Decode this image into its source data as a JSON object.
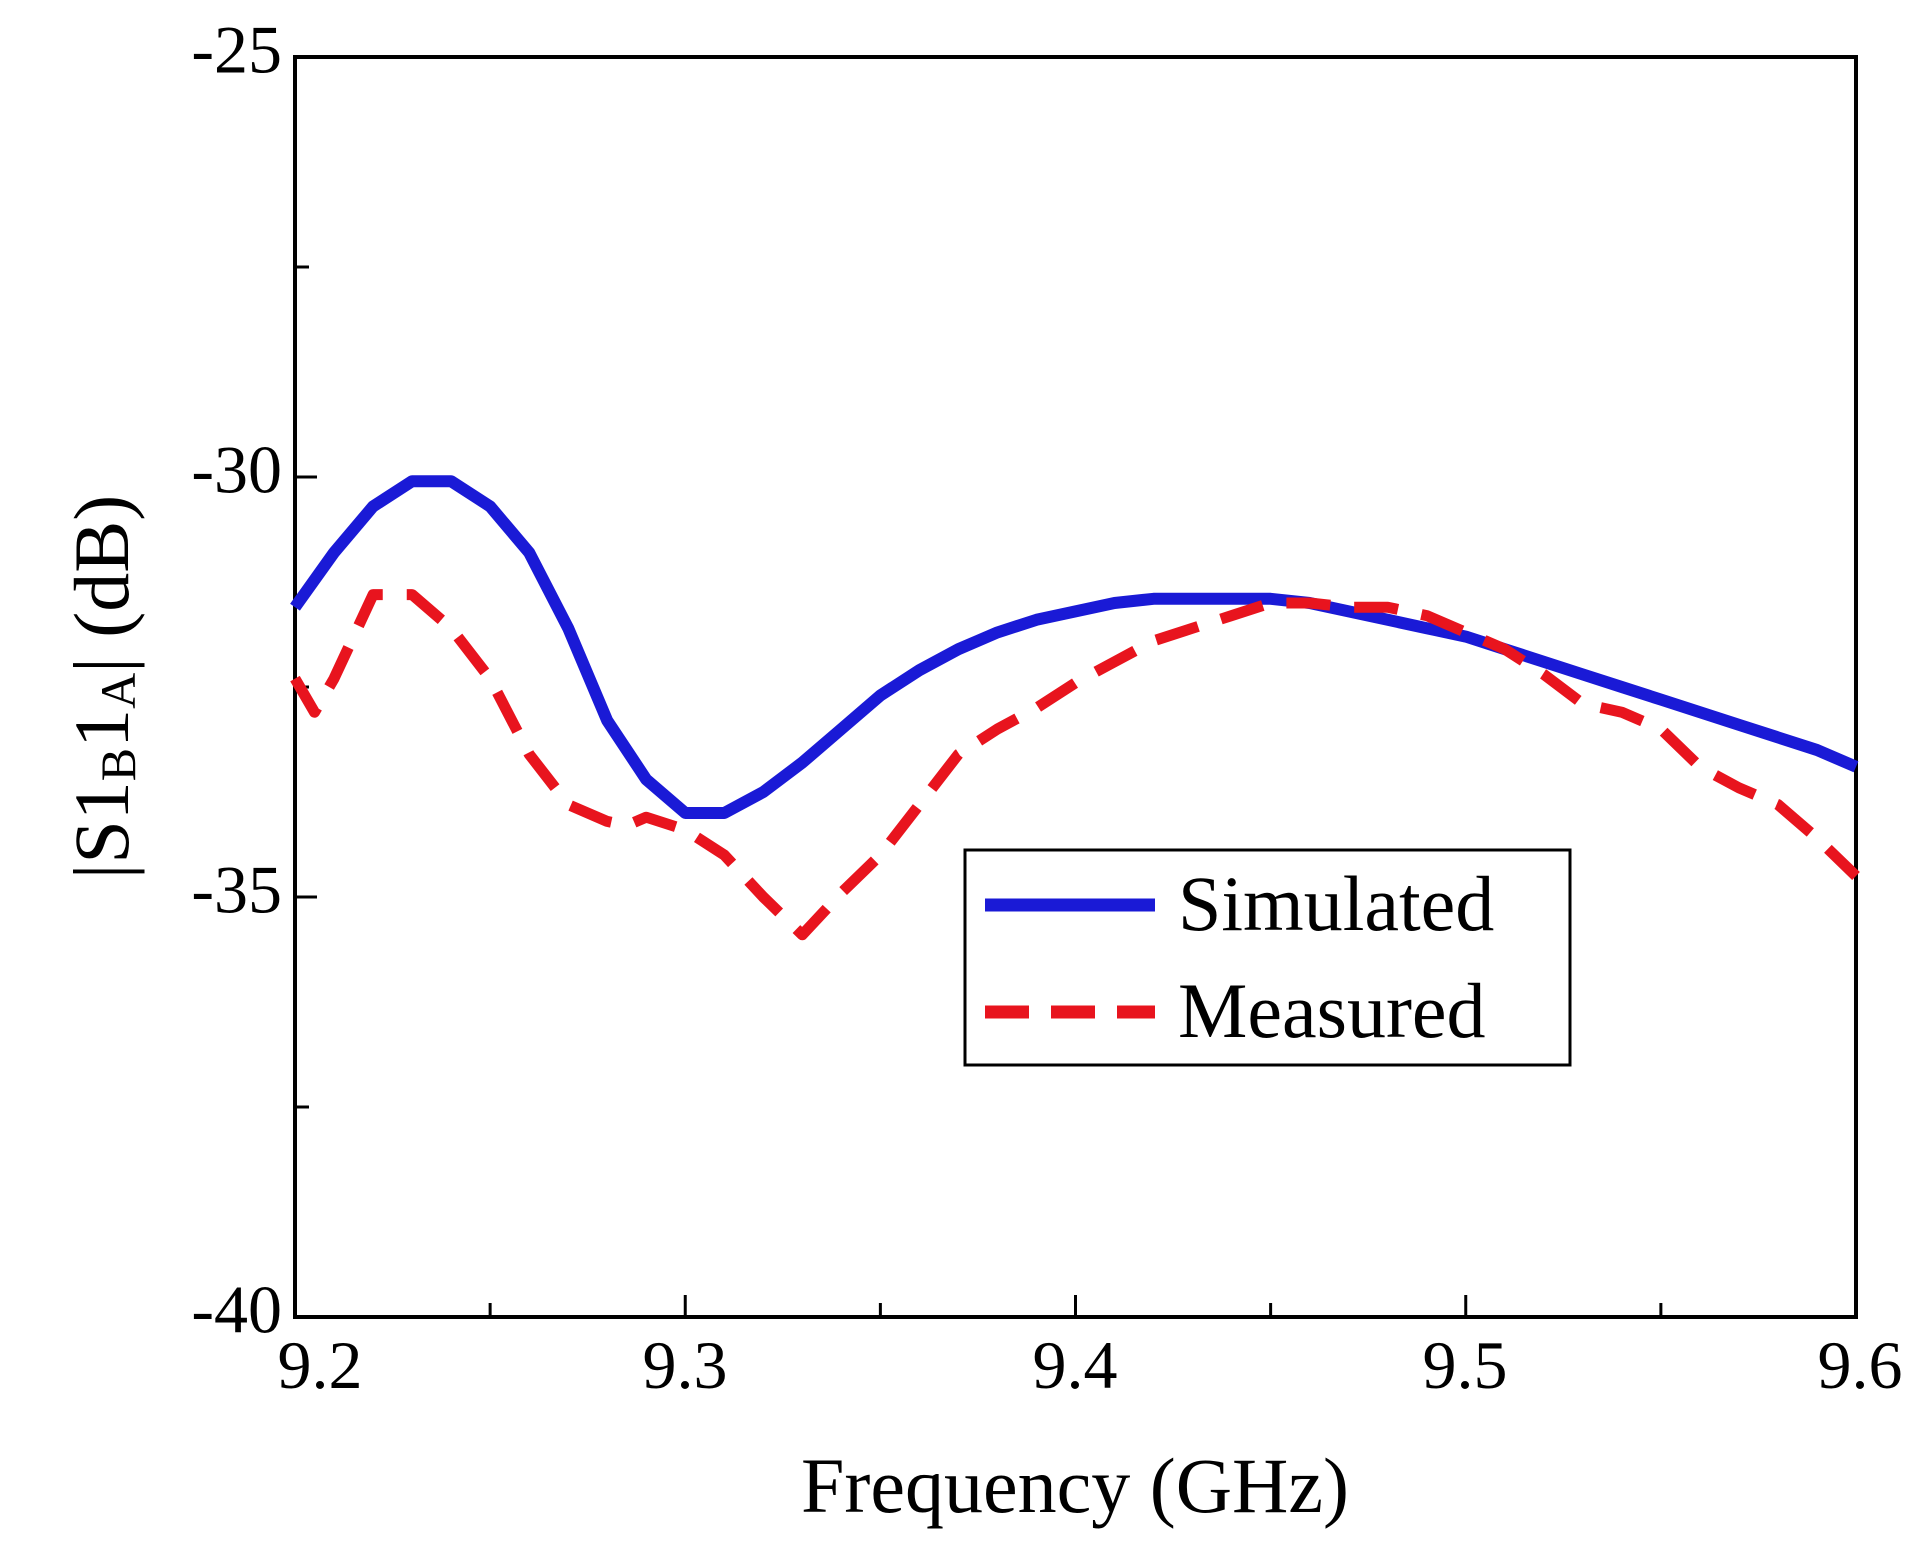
{
  "chart_data": {
    "type": "line",
    "xlabel": "Frequency (GHz)",
    "ylabel": {
      "prefix": "|S1",
      "sub1": "B",
      "mid": "1",
      "sub2": "A",
      "suffix": "| (dB)"
    },
    "xlim": [
      9.2,
      9.6
    ],
    "ylim": [
      -40,
      -25
    ],
    "xticks": [
      9.2,
      9.25,
      9.3,
      9.35,
      9.4,
      9.45,
      9.5,
      9.55,
      9.6
    ],
    "xtick_labels": [
      "9.2",
      "9.3",
      "9.4",
      "9.5",
      "9.6"
    ],
    "yticks": [
      -40,
      -37.5,
      -35,
      -32.5,
      -30,
      -27.5,
      -25
    ],
    "ytick_labels": [
      "-25",
      "-30",
      "-35",
      "-40"
    ],
    "legend_position": "center-right",
    "series": [
      {
        "name": "Simulated",
        "color": "#1a1ad6",
        "style": "solid",
        "x": [
          9.2,
          9.21,
          9.22,
          9.23,
          9.24,
          9.25,
          9.26,
          9.27,
          9.28,
          9.29,
          9.3,
          9.31,
          9.32,
          9.33,
          9.34,
          9.35,
          9.36,
          9.37,
          9.38,
          9.39,
          9.4,
          9.41,
          9.42,
          9.43,
          9.44,
          9.45,
          9.46,
          9.47,
          9.48,
          9.49,
          9.5,
          9.51,
          9.52,
          9.53,
          9.54,
          9.55,
          9.56,
          9.57,
          9.58,
          9.59,
          9.6
        ],
        "values": [
          -31.55,
          -30.9,
          -30.35,
          -30.05,
          -30.05,
          -30.35,
          -30.9,
          -31.8,
          -32.9,
          -33.6,
          -34.0,
          -34.0,
          -33.75,
          -33.4,
          -33.0,
          -32.6,
          -32.3,
          -32.05,
          -31.85,
          -31.7,
          -31.6,
          -31.5,
          -31.45,
          -31.45,
          -31.45,
          -31.45,
          -31.5,
          -31.6,
          -31.7,
          -31.8,
          -31.9,
          -32.05,
          -32.2,
          -32.35,
          -32.5,
          -32.65,
          -32.8,
          -32.95,
          -33.1,
          -33.25,
          -33.45
        ]
      },
      {
        "name": "Measured",
        "color": "#e8141e",
        "style": "dashed",
        "x": [
          9.2,
          9.205,
          9.21,
          9.22,
          9.23,
          9.24,
          9.25,
          9.26,
          9.27,
          9.28,
          9.285,
          9.29,
          9.3,
          9.31,
          9.32,
          9.33,
          9.34,
          9.35,
          9.36,
          9.37,
          9.38,
          9.39,
          9.4,
          9.41,
          9.42,
          9.43,
          9.44,
          9.45,
          9.46,
          9.47,
          9.48,
          9.49,
          9.5,
          9.51,
          9.52,
          9.53,
          9.54,
          9.55,
          9.56,
          9.57,
          9.58,
          9.59,
          9.6
        ],
        "values": [
          -32.4,
          -32.8,
          -32.4,
          -31.4,
          -31.4,
          -31.8,
          -32.4,
          -33.3,
          -33.9,
          -34.1,
          -34.15,
          -34.05,
          -34.2,
          -34.5,
          -35.0,
          -35.45,
          -34.95,
          -34.5,
          -33.9,
          -33.3,
          -33.0,
          -32.75,
          -32.45,
          -32.2,
          -31.95,
          -31.8,
          -31.65,
          -31.5,
          -31.5,
          -31.55,
          -31.55,
          -31.65,
          -31.85,
          -32.05,
          -32.35,
          -32.7,
          -32.8,
          -33.0,
          -33.45,
          -33.7,
          -33.9,
          -34.3,
          -34.75
        ]
      }
    ]
  }
}
